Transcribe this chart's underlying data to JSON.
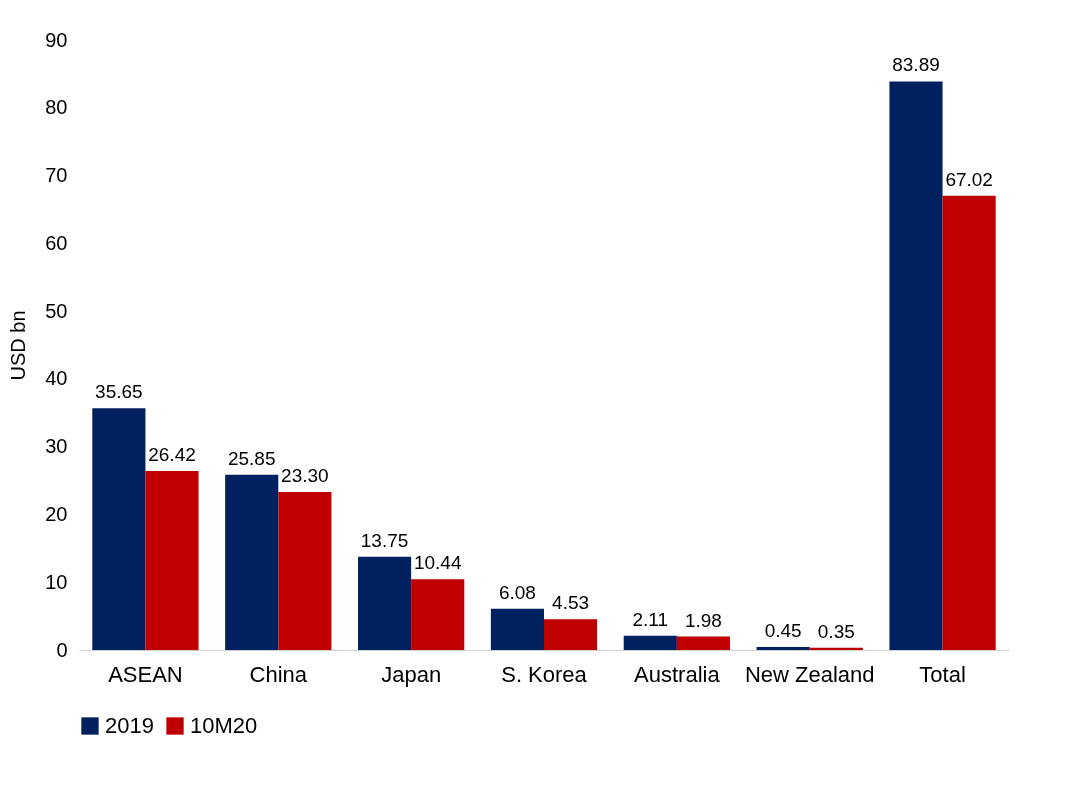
{
  "chart_data": {
    "type": "bar",
    "ylabel": "USD bn",
    "categories": [
      "ASEAN",
      "China",
      "Japan",
      "S. Korea",
      "Australia",
      "New Zealand",
      "Total"
    ],
    "series": [
      {
        "name": "2019",
        "color": "#002060",
        "values": [
          35.65,
          25.85,
          13.75,
          6.08,
          2.11,
          0.45,
          83.89
        ],
        "value_labels": [
          "35.65",
          "25.85",
          "13.75",
          "6.08",
          "2.11",
          "0.45",
          "83.89"
        ]
      },
      {
        "name": "10M20",
        "color": "#c00000",
        "values": [
          26.42,
          23.3,
          10.44,
          4.53,
          1.98,
          0.35,
          67.02
        ],
        "value_labels": [
          "26.42",
          "23.30",
          "10.44",
          "4.53",
          "1.98",
          "0.35",
          "67.02"
        ]
      }
    ],
    "ylim": [
      0,
      90
    ],
    "yticks": [
      0,
      10,
      20,
      30,
      40,
      50,
      60,
      70,
      80,
      90
    ],
    "grid": false,
    "legend": "bottom"
  }
}
